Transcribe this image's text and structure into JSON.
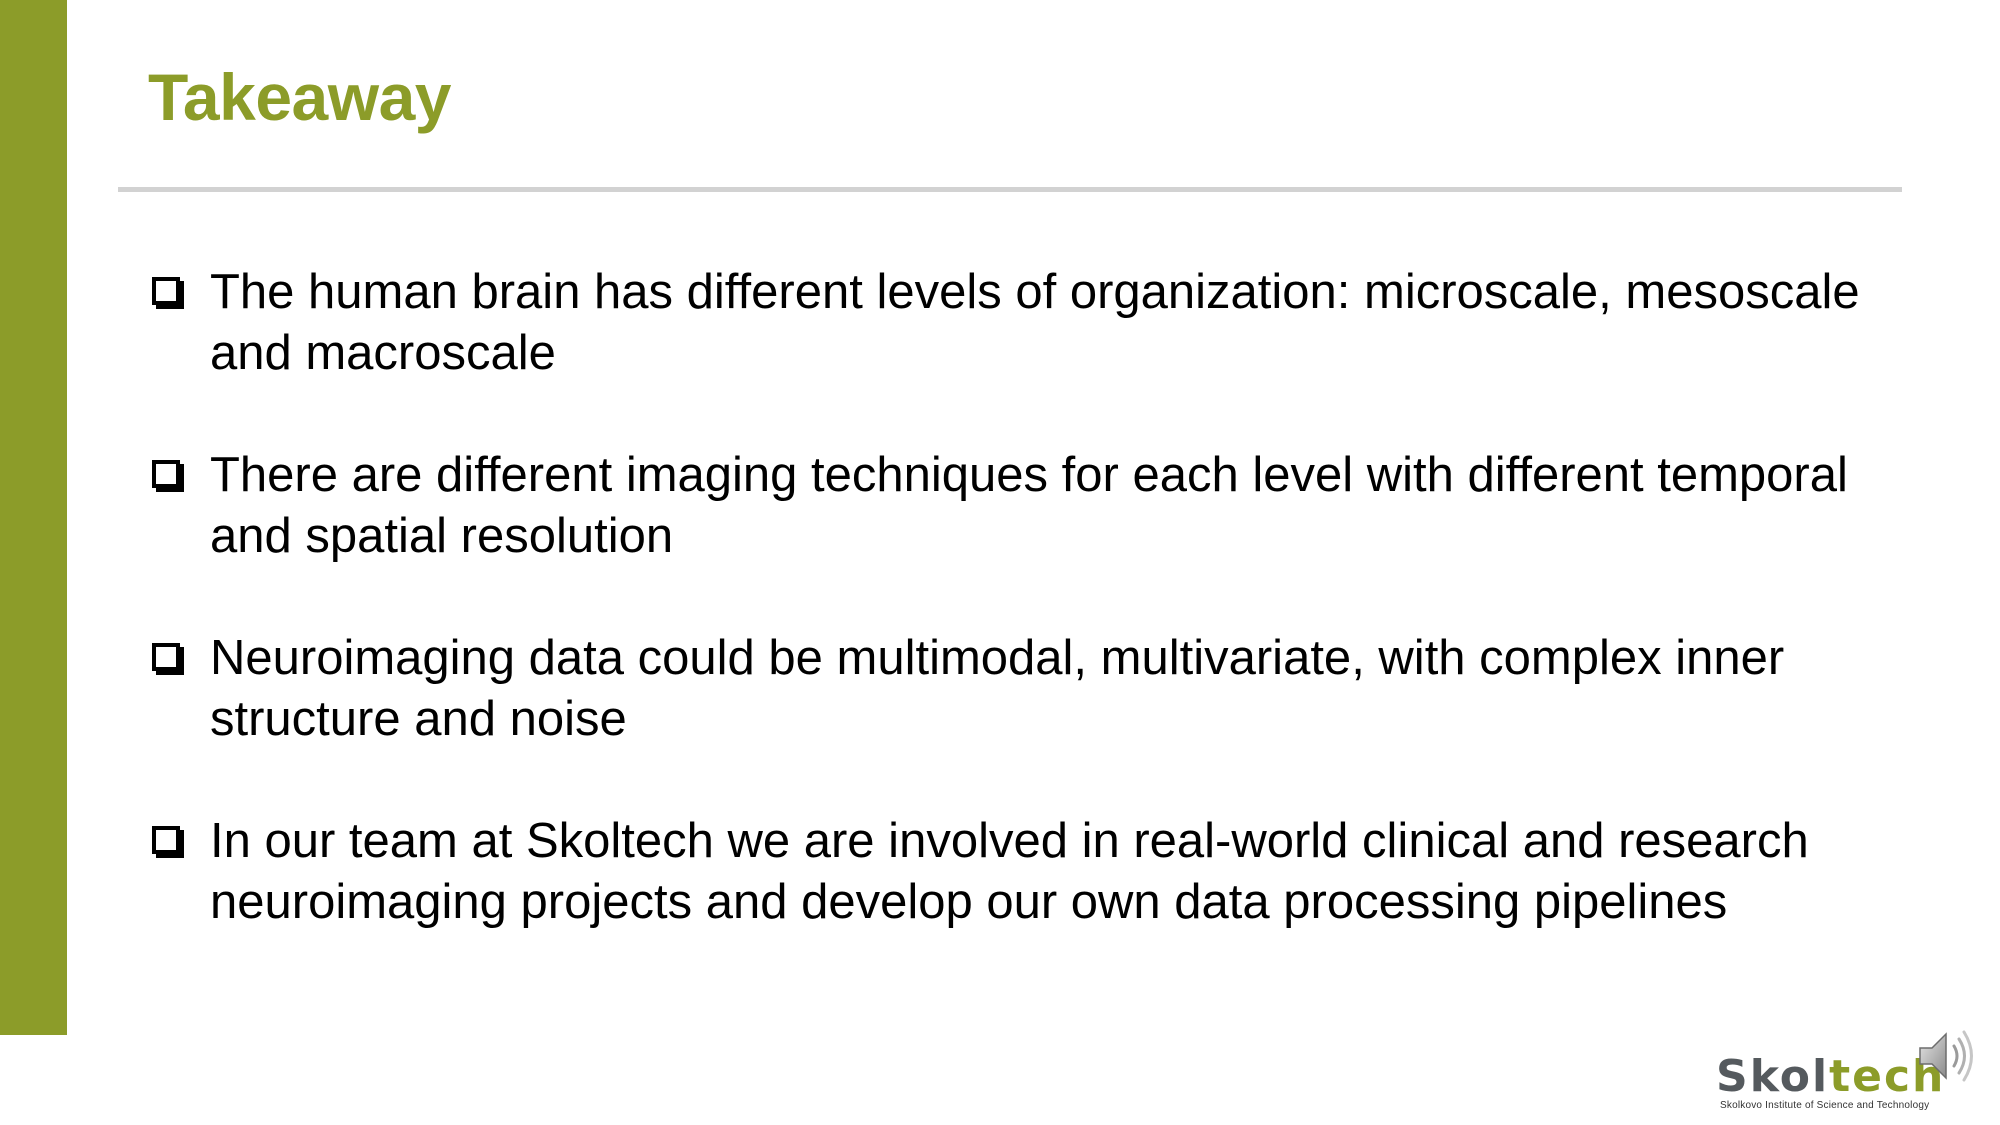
{
  "slide": {
    "title": "Takeaway",
    "bullets": [
      "The human brain has different levels of organization: microscale, mesoscale and macroscale",
      "There are different imaging techniques for each level with different temporal and spatial resolution",
      "Neuroimaging data could be multimodal, multivariate, with complex inner structure and noise",
      "In our team at Skoltech we are involved in real-world clinical and research neuroimaging projects and develop our own data processing pipelines"
    ],
    "bullet_marker_icon": "checkbox-icon"
  },
  "logo": {
    "word_part1": "Skol",
    "word_part2": "tech",
    "subtitle": "Skolkovo Institute of Science and Technology"
  },
  "audio": {
    "icon": "speaker-icon"
  },
  "colors": {
    "accent": "#8c9c29",
    "divider": "#d2d2d2",
    "logo_gray": "#555a5e",
    "text": "#000000"
  }
}
